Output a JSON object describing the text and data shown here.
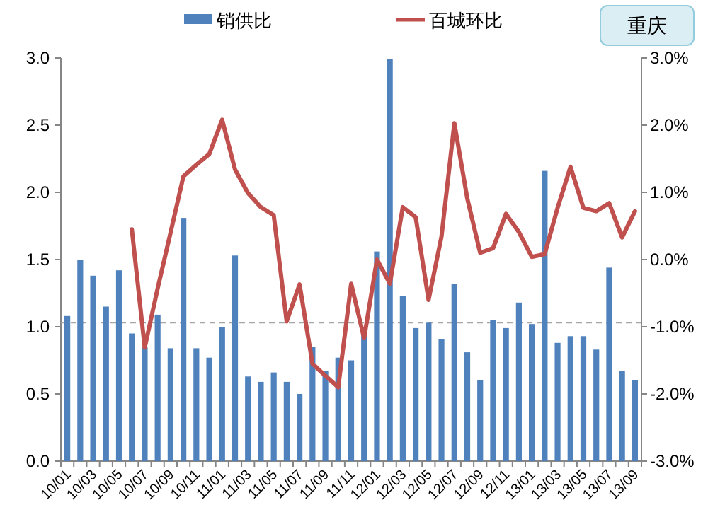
{
  "chart_data": {
    "type": "bar",
    "categories": [
      "10/01",
      null,
      "10/03",
      null,
      "10/05",
      null,
      "10/07",
      null,
      "10/09",
      null,
      "10/11",
      null,
      "11/01",
      null,
      "11/03",
      null,
      "11/05",
      null,
      "11/07",
      null,
      "11/09",
      null,
      "11/11",
      null,
      "12/01",
      null,
      "12/03",
      null,
      "12/05",
      null,
      "12/07",
      null,
      "12/09",
      null,
      "12/11",
      null,
      "13/01",
      null,
      "13/03",
      null,
      "13/05",
      null,
      "13/07",
      null,
      "13/09"
    ],
    "series": [
      {
        "name": "销供比",
        "color": "#4f81bd",
        "values": [
          1.08,
          1.5,
          1.38,
          1.15,
          1.42,
          0.95,
          0.85,
          1.09,
          0.84,
          1.81,
          0.84,
          0.77,
          1.0,
          1.53,
          0.63,
          0.59,
          0.66,
          0.59,
          0.5,
          0.85,
          0.67,
          0.77,
          0.75,
          0.95,
          1.56,
          2.99,
          1.23,
          0.99,
          1.03,
          0.91,
          1.32,
          0.81,
          0.6,
          1.05,
          0.99,
          1.18,
          1.02,
          2.16,
          0.88,
          0.93,
          0.93,
          0.83,
          1.44,
          0.67,
          0.6
        ]
      },
      {
        "name": "百城环比",
        "type": "line",
        "axis": "y2",
        "color": "#c0504d",
        "values": [
          null,
          null,
          null,
          null,
          null,
          0.45,
          -1.31,
          -0.43,
          0.4,
          1.24,
          1.41,
          1.57,
          2.08,
          1.34,
          0.99,
          0.78,
          0.66,
          -0.92,
          -0.37,
          -1.55,
          -1.73,
          -1.9,
          -0.36,
          -1.17,
          0.0,
          -0.36,
          0.78,
          0.63,
          -0.6,
          0.34,
          2.03,
          0.91,
          0.1,
          0.17,
          0.68,
          0.41,
          0.04,
          0.08,
          0.77,
          1.38,
          0.77,
          0.72,
          0.84,
          0.33,
          0.72
        ]
      }
    ],
    "ylim": [
      0,
      3
    ],
    "yticks": [
      {
        "value": 0,
        "label": "0.0"
      },
      {
        "value": 0.5,
        "label": "0.5"
      },
      {
        "value": 1,
        "label": "1.0"
      },
      {
        "value": 1.5,
        "label": "1.5"
      },
      {
        "value": 2,
        "label": "2.0"
      },
      {
        "value": 2.5,
        "label": "2.5"
      },
      {
        "value": 3,
        "label": "3.0"
      }
    ],
    "y2lim": [
      -3,
      3
    ],
    "y2ticks": [
      {
        "value": -3,
        "label": "-3.0%"
      },
      {
        "value": -2,
        "label": "-2.0%"
      },
      {
        "value": -1,
        "label": "-1.0%"
      },
      {
        "value": 0,
        "label": "0.0%"
      },
      {
        "value": 1,
        "label": "1.0%"
      },
      {
        "value": 2,
        "label": "2.0%"
      },
      {
        "value": 3,
        "label": "3.0%"
      }
    ],
    "ref_lines": [
      {
        "axis": "y",
        "value": 1.03,
        "color": "#a6a6a6",
        "line_style": "dashed"
      }
    ],
    "legend": "top",
    "annotations": [
      "重庆"
    ]
  }
}
